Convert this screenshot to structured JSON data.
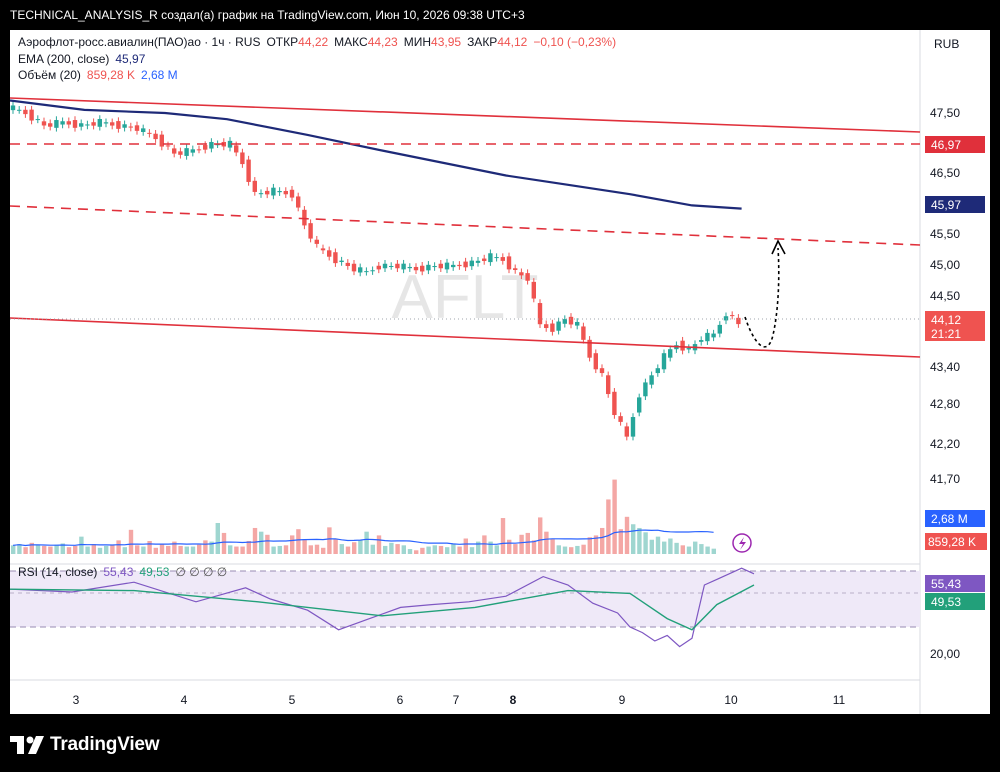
{
  "header": {
    "publish_line": "TECHNICAL_ANALYSIS_R создал(а) график на TradingView.com, Июн 10, 2026 09:38 UTC+3"
  },
  "legend": {
    "symbol": "Аэрофлот-росс.авиалин(ПАО)ао · 1ч · RUS",
    "open_label": "ОТКР",
    "open_value": "44,22",
    "high_label": "МАКС",
    "high_value": "44,23",
    "low_label": "МИН",
    "low_value": "43,95",
    "close_label": "ЗАКР",
    "close_value": "44,12",
    "change": "−0,10 (−0,23%)",
    "ema_label": "EMA (200, close)",
    "ema_value": "45,97",
    "volume_label": "Объём (20)",
    "volume_value": "859,28 K",
    "volume_ma_value": "2,68 M",
    "rsi_label": "RSI (14, close)",
    "rsi_value": "55,43",
    "rsi_ma_value": "49,53",
    "rsi_extra": "∅ ∅ ∅ ∅"
  },
  "currency": "RUB",
  "watermark": "AFLT",
  "price_axis": {
    "ticks": [
      "47,50",
      "46,50",
      "45,50",
      "45,00",
      "44,50",
      "43,40",
      "42,80",
      "42,20",
      "41,70"
    ],
    "badges": {
      "level_top": "46,97",
      "ema": "45,97",
      "last_price": "44,12",
      "countdown": "21:21",
      "volume_ma": "2,68 M",
      "volume": "859,28 K",
      "rsi": "55,43",
      "rsi_ma": "49,53"
    },
    "rsi_tick": "20,00"
  },
  "time_axis": [
    "3",
    "4",
    "5",
    "6",
    "7",
    "8",
    "9",
    "10",
    "11"
  ],
  "branding": {
    "logo_text": "TradingView"
  },
  "colors": {
    "up": "#26a69a",
    "down": "#ef5350",
    "ema": "#1e2a78",
    "level": "#e0303b",
    "rsi": "#7e57c2",
    "rsi_ma": "#22a07a",
    "volume_ma": "#2962ff"
  },
  "chart_data": {
    "type": "candlestick",
    "timeframe": "1ч",
    "x_labels": [
      "3",
      "4",
      "5",
      "6",
      "7",
      "8",
      "9",
      "10",
      "11"
    ],
    "price_series": {
      "name": "AFLT",
      "points": [
        [
          0,
          47.6
        ],
        [
          3,
          47.5
        ],
        [
          6,
          47.3
        ],
        [
          9,
          47.35
        ],
        [
          12,
          47.3
        ],
        [
          15,
          47.35
        ],
        [
          18,
          47.3
        ],
        [
          21,
          47.25
        ],
        [
          24,
          47.1
        ],
        [
          27,
          46.85
        ],
        [
          30,
          46.9
        ],
        [
          33,
          47.0
        ],
        [
          36,
          47.0
        ],
        [
          38,
          46.7
        ],
        [
          40,
          46.2
        ],
        [
          43,
          46.25
        ],
        [
          46,
          46.2
        ],
        [
          48,
          45.7
        ],
        [
          50,
          45.35
        ],
        [
          53,
          45.15
        ],
        [
          56,
          45.0
        ],
        [
          58,
          44.95
        ],
        [
          60,
          45.05
        ],
        [
          63,
          45.05
        ],
        [
          66,
          45.0
        ],
        [
          69,
          45.05
        ],
        [
          72,
          45.05
        ],
        [
          75,
          45.1
        ],
        [
          78,
          45.2
        ],
        [
          80,
          45.15
        ],
        [
          82,
          44.95
        ],
        [
          84,
          44.85
        ],
        [
          86,
          44.1
        ],
        [
          88,
          44.05
        ],
        [
          90,
          44.2
        ],
        [
          92,
          44.1
        ],
        [
          94,
          43.6
        ],
        [
          96,
          43.3
        ],
        [
          98,
          42.7
        ],
        [
          100,
          42.3
        ],
        [
          102,
          43.0
        ],
        [
          104,
          43.3
        ],
        [
          106,
          43.6
        ],
        [
          108,
          43.8
        ],
        [
          110,
          43.7
        ],
        [
          112,
          43.9
        ],
        [
          114,
          43.95
        ],
        [
          116,
          44.3
        ],
        [
          117,
          44.22
        ],
        [
          118,
          44.12
        ]
      ]
    },
    "ema_200": {
      "name": "EMA (200, close)",
      "points": [
        [
          0,
          47.7
        ],
        [
          12,
          47.55
        ],
        [
          25,
          47.5
        ],
        [
          35,
          47.4
        ],
        [
          48,
          47.15
        ],
        [
          60,
          46.9
        ],
        [
          70,
          46.7
        ],
        [
          80,
          46.5
        ],
        [
          90,
          46.35
        ],
        [
          100,
          46.2
        ],
        [
          110,
          46.02
        ],
        [
          118,
          45.97
        ]
      ]
    },
    "levels": [
      {
        "style": "solid",
        "from": [
          0,
          47.4
        ],
        "to": [
          148,
          46.97
        ]
      },
      {
        "style": "dashed",
        "value": 46.97
      },
      {
        "style": "dashed",
        "from": [
          0,
          45.9
        ],
        "to": [
          148,
          45.3
        ]
      },
      {
        "style": "solid",
        "from": [
          0,
          44.1
        ],
        "to": [
          148,
          43.5
        ]
      }
    ],
    "projection": {
      "from": [
        118,
        44.12
      ],
      "dip": 43.85,
      "target": 45.4
    },
    "volume": {
      "values": [
        1.4,
        1.6,
        1.1,
        1.8,
        1.5,
        1.3,
        1.2,
        1.5,
        1.7,
        1.1,
        1.3,
        2.8,
        1.2,
        1.6,
        1.0,
        1.3,
        1.4,
        2.2,
        1.1,
        3.9,
        1.4,
        1.2,
        2.1,
        1.0,
        1.6,
        1.3,
        2.0,
        1.3,
        1.2,
        1.2,
        1.5,
        2.2,
        2.0,
        5.0,
        3.4,
        1.4,
        1.2,
        1.2,
        2.1,
        4.2,
        3.6,
        3.1,
        1.2,
        1.3,
        1.4,
        3.0,
        4.0,
        2.4,
        1.4,
        1.5,
        1.0,
        4.3,
        2.4,
        1.6,
        1.2,
        1.9,
        2.2,
        3.6,
        1.5,
        3.0,
        1.3,
        1.8,
        1.6,
        1.4,
        0.8,
        0.6,
        1.0,
        1.2,
        1.4,
        1.3,
        1.1,
        1.6,
        1.2,
        2.5,
        1.1,
        2.0,
        3.0,
        2.0,
        1.4,
        5.8,
        2.3,
        1.6,
        3.1,
        3.4,
        2.2,
        5.9,
        3.6,
        2.4,
        1.4,
        1.2,
        1.1,
        1.3,
        1.5,
        2.7,
        3.0,
        4.2,
        8.8,
        12.0,
        4.0,
        6.0,
        4.8,
        4.2,
        3.5,
        2.3,
        2.8,
        2.0,
        2.5,
        1.8,
        1.4,
        1.2,
        2.0,
        1.6,
        1.2,
        0.86
      ],
      "ma_name": "Объём (20)",
      "ma_last": 2.68,
      "last": 0.86,
      "unit": "M"
    },
    "rsi": {
      "name": "RSI (14, close)",
      "levels": [
        70,
        30
      ],
      "rsi_points": [
        [
          0,
          57
        ],
        [
          10,
          55
        ],
        [
          20,
          62
        ],
        [
          30,
          48
        ],
        [
          38,
          58
        ],
        [
          42,
          50
        ],
        [
          48,
          42
        ],
        [
          53,
          28
        ],
        [
          58,
          36
        ],
        [
          63,
          44
        ],
        [
          68,
          46
        ],
        [
          74,
          48
        ],
        [
          80,
          52
        ],
        [
          86,
          66
        ],
        [
          90,
          60
        ],
        [
          94,
          47
        ],
        [
          98,
          40
        ],
        [
          100,
          30
        ],
        [
          102,
          26
        ],
        [
          104,
          20
        ],
        [
          106,
          24
        ],
        [
          108,
          16
        ],
        [
          110,
          22
        ],
        [
          112,
          60
        ],
        [
          114,
          64
        ],
        [
          116,
          68
        ],
        [
          118,
          72
        ],
        [
          120,
          68
        ]
      ],
      "ma_points": [
        [
          0,
          57
        ],
        [
          20,
          56
        ],
        [
          40,
          48
        ],
        [
          60,
          38
        ],
        [
          75,
          44
        ],
        [
          90,
          56
        ],
        [
          100,
          54
        ],
        [
          106,
          36
        ],
        [
          110,
          28
        ],
        [
          114,
          46
        ],
        [
          120,
          60
        ]
      ],
      "last": 55.43,
      "ma_last": 49.53
    }
  }
}
